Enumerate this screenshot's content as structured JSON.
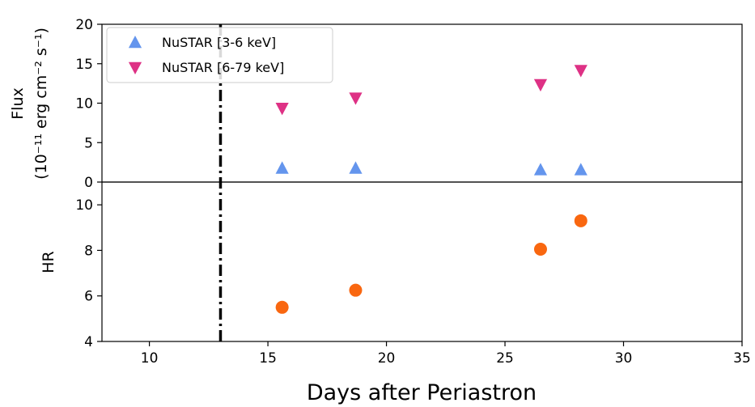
{
  "chart_data": [
    {
      "type": "scatter",
      "panel": "top",
      "ylabel_line1": "Flux",
      "ylabel_line2": "(10⁻¹¹ erg cm⁻² s⁻¹)",
      "xlim": [
        8,
        35
      ],
      "ylim": [
        0,
        20
      ],
      "yticks": [
        0,
        5,
        10,
        15,
        20
      ],
      "legend_position": "top-left",
      "series": [
        {
          "name": "NuSTAR [3-6 keV]",
          "marker": "triangle-up",
          "color": "#6495ED",
          "x": [
            15.6,
            18.7,
            26.5,
            28.2
          ],
          "y": [
            1.7,
            1.7,
            1.5,
            1.5
          ]
        },
        {
          "name": "NuSTAR [6-79 keV]",
          "marker": "triangle-down",
          "color": "#DE3185",
          "x": [
            15.6,
            18.7,
            26.5,
            28.2
          ],
          "y": [
            9.4,
            10.7,
            12.4,
            14.2
          ]
        }
      ]
    },
    {
      "type": "scatter",
      "panel": "bottom",
      "ylabel": "HR",
      "xlabel": "Days after Periastron",
      "xlim": [
        8,
        35
      ],
      "ylim": [
        4,
        11
      ],
      "xticks": [
        10,
        15,
        20,
        25,
        30,
        35
      ],
      "yticks": [
        4,
        6,
        8,
        10
      ],
      "series": [
        {
          "marker": "circle",
          "color": "#F96710",
          "x": [
            15.6,
            18.7,
            26.5,
            28.2
          ],
          "y": [
            5.5,
            6.25,
            8.05,
            9.3
          ]
        }
      ]
    }
  ],
  "periastron_line": {
    "x": 13,
    "style": "dash-dot",
    "color": "#000000"
  }
}
